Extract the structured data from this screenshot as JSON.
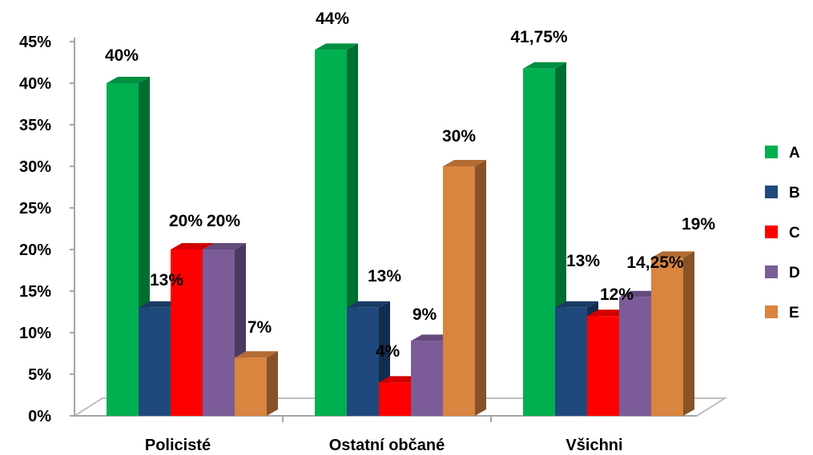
{
  "chart_data": {
    "type": "bar",
    "categories": [
      "Policisté",
      "Ostatní občané",
      "Všichni"
    ],
    "series": [
      {
        "name": "A",
        "color": "#00b050",
        "values": [
          40,
          44,
          41.75
        ],
        "labels": [
          "40%",
          "44%",
          "41,75%"
        ]
      },
      {
        "name": "B",
        "color": "#1f497d",
        "values": [
          13,
          13,
          13
        ],
        "labels": [
          "13%",
          "13%",
          "13%"
        ]
      },
      {
        "name": "C",
        "color": "#ff0000",
        "values": [
          20,
          4,
          12
        ],
        "labels": [
          "20%",
          "4%",
          "12%"
        ]
      },
      {
        "name": "D",
        "color": "#7b5c99",
        "values": [
          20,
          9,
          14.25
        ],
        "labels": [
          "20%",
          "9%",
          "14,25%"
        ]
      },
      {
        "name": "E",
        "color": "#d9843f",
        "values": [
          7,
          30,
          19
        ],
        "labels": [
          "7%",
          "30%",
          "19%"
        ]
      }
    ],
    "yticks": [
      "0%",
      "5%",
      "10%",
      "15%",
      "20%",
      "25%",
      "30%",
      "35%",
      "40%",
      "45%"
    ],
    "ylim": [
      0,
      45
    ],
    "legend_position": "right",
    "style": "3d-column",
    "grid": false
  }
}
